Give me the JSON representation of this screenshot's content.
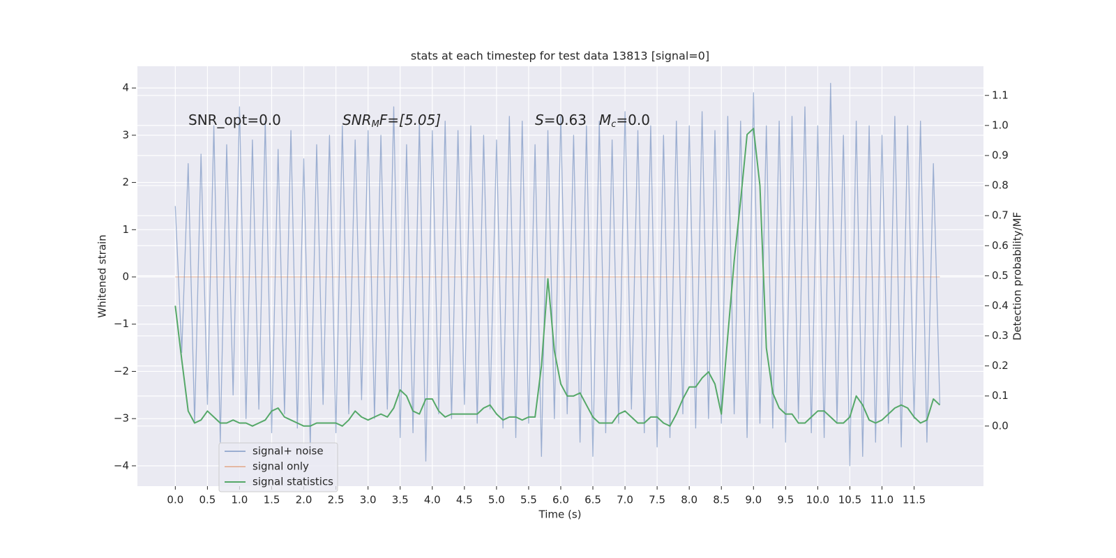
{
  "chart_data": {
    "type": "line",
    "title": "stats at each timestep for test data 13813 [signal=0]",
    "xlabel": "Time (s)",
    "ylabel": "Whitened strain",
    "y2label": "Detection probability/MF",
    "annotations": [
      [
        "SNR_opt=0.0"
      ],
      [
        "SNR",
        "M",
        "F=[5.05]"
      ],
      [
        "S",
        "=0.63"
      ],
      [
        "M",
        "c",
        "=0.0"
      ]
    ],
    "grid": true,
    "legend": "lower left",
    "xlim": [
      -0.59,
      12.58
    ],
    "ylim": [
      -4.43,
      4.46
    ],
    "y2lim": [
      -0.2,
      1.197
    ],
    "xticks": [
      {
        "value": 0,
        "label": "0.0"
      },
      0.5,
      {
        "value": 1,
        "label": "1.0"
      },
      1.5,
      {
        "value": 2,
        "label": "2.0"
      },
      2.5,
      {
        "value": 3,
        "label": "3.0"
      },
      3.5,
      {
        "value": 4,
        "label": "4.0"
      },
      4.5,
      {
        "value": 5,
        "label": "5.0"
      },
      5.5,
      {
        "value": 6,
        "label": "6.0"
      },
      6.5,
      {
        "value": 7,
        "label": "7.0"
      },
      7.5,
      {
        "value": 8,
        "label": "8.0"
      },
      8.5,
      {
        "value": 9,
        "label": "9.0"
      },
      9.5,
      {
        "value": 10,
        "label": "10.0"
      },
      10.5,
      {
        "value": 11,
        "label": "11.0"
      },
      11.5
    ],
    "yticks": [
      {
        "value": -4,
        "label": "−4"
      },
      {
        "value": -3,
        "label": "−3"
      },
      {
        "value": -2,
        "label": "−2"
      },
      {
        "value": -1,
        "label": "−1"
      },
      0,
      1,
      2,
      3,
      4
    ],
    "y2ticks": [
      {
        "value": 0,
        "label": "0.0"
      },
      0.1,
      0.2,
      0.3,
      0.4,
      0.5,
      0.6,
      0.7,
      0.8,
      0.9,
      {
        "value": 1,
        "label": "1.0"
      },
      1.1
    ],
    "x": [
      0,
      0.1,
      0.2,
      0.3,
      0.4,
      0.5,
      0.6,
      0.7,
      0.8,
      0.9,
      1,
      1.1,
      1.2,
      1.3,
      1.4,
      1.5,
      1.6,
      1.7,
      1.8,
      1.9,
      2,
      2.1,
      2.2,
      2.3,
      2.4,
      2.5,
      2.6,
      2.7,
      2.8,
      2.9,
      3,
      3.1,
      3.2,
      3.3,
      3.4,
      3.5,
      3.6,
      3.7,
      3.8,
      3.9,
      4,
      4.1,
      4.2,
      4.3,
      4.4,
      4.5,
      4.6,
      4.7,
      4.8,
      4.9,
      5,
      5.1,
      5.2,
      5.3,
      5.4,
      5.5,
      5.6,
      5.7,
      5.8,
      5.9,
      6,
      6.1,
      6.2,
      6.3,
      6.4,
      6.5,
      6.6,
      6.7,
      6.8,
      6.9,
      7,
      7.1,
      7.2,
      7.3,
      7.4,
      7.5,
      7.6,
      7.7,
      7.8,
      7.9,
      8,
      8.1,
      8.2,
      8.3,
      8.4,
      8.5,
      8.6,
      8.7,
      8.8,
      8.9,
      9,
      9.1,
      9.2,
      9.3,
      9.4,
      9.5,
      9.6,
      9.7,
      9.8,
      9.9,
      10,
      10.1,
      10.2,
      10.3,
      10.4,
      10.5,
      10.6,
      10.7,
      10.8,
      10.9,
      11,
      11.1,
      11.2,
      11.3,
      11.4,
      11.5,
      11.6,
      11.7,
      11.8,
      11.9
    ],
    "series": [
      {
        "name": "signal only",
        "color": "#dd8452",
        "alpha": 0.5,
        "values": [
          0,
          0,
          0,
          0,
          0,
          0,
          0,
          0,
          0,
          0,
          0,
          0,
          0,
          0,
          0,
          0,
          0,
          0,
          0,
          0,
          0,
          0,
          0,
          0,
          0,
          0,
          0,
          0,
          0,
          0,
          0,
          0,
          0,
          0,
          0,
          0,
          0,
          0,
          0,
          0,
          0,
          0,
          0,
          0,
          0,
          0,
          0,
          0,
          0,
          0,
          0,
          0,
          0,
          0,
          0,
          0,
          0,
          0,
          0,
          0,
          0,
          0,
          0,
          0,
          0,
          0,
          0,
          0,
          0,
          0,
          0,
          0,
          0,
          0,
          0,
          0,
          0,
          0,
          0,
          0,
          0,
          0,
          0,
          0,
          0,
          0,
          0,
          0,
          0,
          0,
          0,
          0,
          0,
          0,
          0,
          0,
          0,
          0,
          0,
          0,
          0,
          0,
          0,
          0,
          0,
          0,
          0,
          0,
          0,
          0,
          0,
          0,
          0,
          0,
          0,
          0,
          0,
          0,
          0,
          0
        ]
      },
      {
        "name": "signal+ noise",
        "color": "#4c72b0",
        "alpha": 0.5,
        "values": [
          1.5,
          -1.6,
          2.4,
          -3.1,
          2.6,
          -2.7,
          3.2,
          -3.5,
          2.8,
          -2.5,
          3.6,
          -3.0,
          2.9,
          -2.8,
          3.3,
          -3.3,
          2.7,
          -2.9,
          3.1,
          -3.2,
          2.5,
          -3.6,
          2.8,
          -2.7,
          3.0,
          -3.3,
          3.2,
          -2.9,
          2.9,
          -2.6,
          3.1,
          -3.0,
          3.0,
          -2.8,
          3.6,
          -3.4,
          2.8,
          -3.3,
          3.3,
          -3.9,
          3.1,
          -2.9,
          3.3,
          -3.0,
          3.1,
          -2.7,
          3.2,
          -3.1,
          3.0,
          -2.8,
          2.9,
          -3.2,
          3.4,
          -3.4,
          3.3,
          -3.1,
          2.8,
          -3.8,
          3.1,
          -3.0,
          3.4,
          -2.9,
          3.0,
          -3.5,
          3.2,
          -3.8,
          3.3,
          -3.3,
          2.9,
          -3.1,
          3.5,
          -2.8,
          3.1,
          -3.3,
          3.2,
          -3.6,
          3.0,
          -3.4,
          3.3,
          -2.9,
          3.2,
          -3.2,
          3.5,
          -3.0,
          3.1,
          -3.1,
          3.4,
          -2.9,
          3.3,
          -3.4,
          3.9,
          -3.1,
          3.2,
          -3.2,
          3.3,
          -3.5,
          3.4,
          -3.0,
          3.6,
          -3.3,
          3.2,
          -3.4,
          4.1,
          -3.1,
          3.0,
          -4.0,
          3.3,
          -3.8,
          3.2,
          -3.5,
          3.0,
          -3.1,
          3.4,
          -3.6,
          3.2,
          -3.0,
          3.3,
          -3.5,
          2.4,
          -2.7
        ]
      },
      {
        "name": "signal statistics",
        "color": "#55a868",
        "alpha": 1,
        "axis": "y2",
        "values": [
          0.4,
          0.22,
          0.05,
          0.01,
          0.02,
          0.05,
          0.03,
          0.01,
          0.01,
          0.02,
          0.01,
          0.01,
          0.0,
          0.01,
          0.02,
          0.05,
          0.06,
          0.03,
          0.02,
          0.01,
          0.0,
          0.0,
          0.01,
          0.01,
          0.01,
          0.01,
          0.0,
          0.02,
          0.05,
          0.03,
          0.02,
          0.03,
          0.04,
          0.03,
          0.06,
          0.12,
          0.1,
          0.05,
          0.04,
          0.09,
          0.09,
          0.05,
          0.03,
          0.04,
          0.04,
          0.04,
          0.04,
          0.04,
          0.06,
          0.07,
          0.04,
          0.02,
          0.03,
          0.03,
          0.02,
          0.03,
          0.03,
          0.2,
          0.49,
          0.25,
          0.14,
          0.1,
          0.1,
          0.11,
          0.07,
          0.03,
          0.01,
          0.01,
          0.01,
          0.04,
          0.05,
          0.03,
          0.01,
          0.01,
          0.03,
          0.03,
          0.01,
          0.0,
          0.04,
          0.09,
          0.13,
          0.13,
          0.16,
          0.18,
          0.14,
          0.04,
          0.3,
          0.55,
          0.75,
          0.97,
          0.99,
          0.8,
          0.26,
          0.11,
          0.06,
          0.04,
          0.04,
          0.01,
          0.01,
          0.03,
          0.05,
          0.05,
          0.03,
          0.01,
          0.01,
          0.03,
          0.1,
          0.07,
          0.02,
          0.01,
          0.02,
          0.04,
          0.06,
          0.07,
          0.06,
          0.03,
          0.01,
          0.02,
          0.09,
          0.07
        ]
      }
    ],
    "legend_order": [
      1,
      0,
      2
    ]
  }
}
